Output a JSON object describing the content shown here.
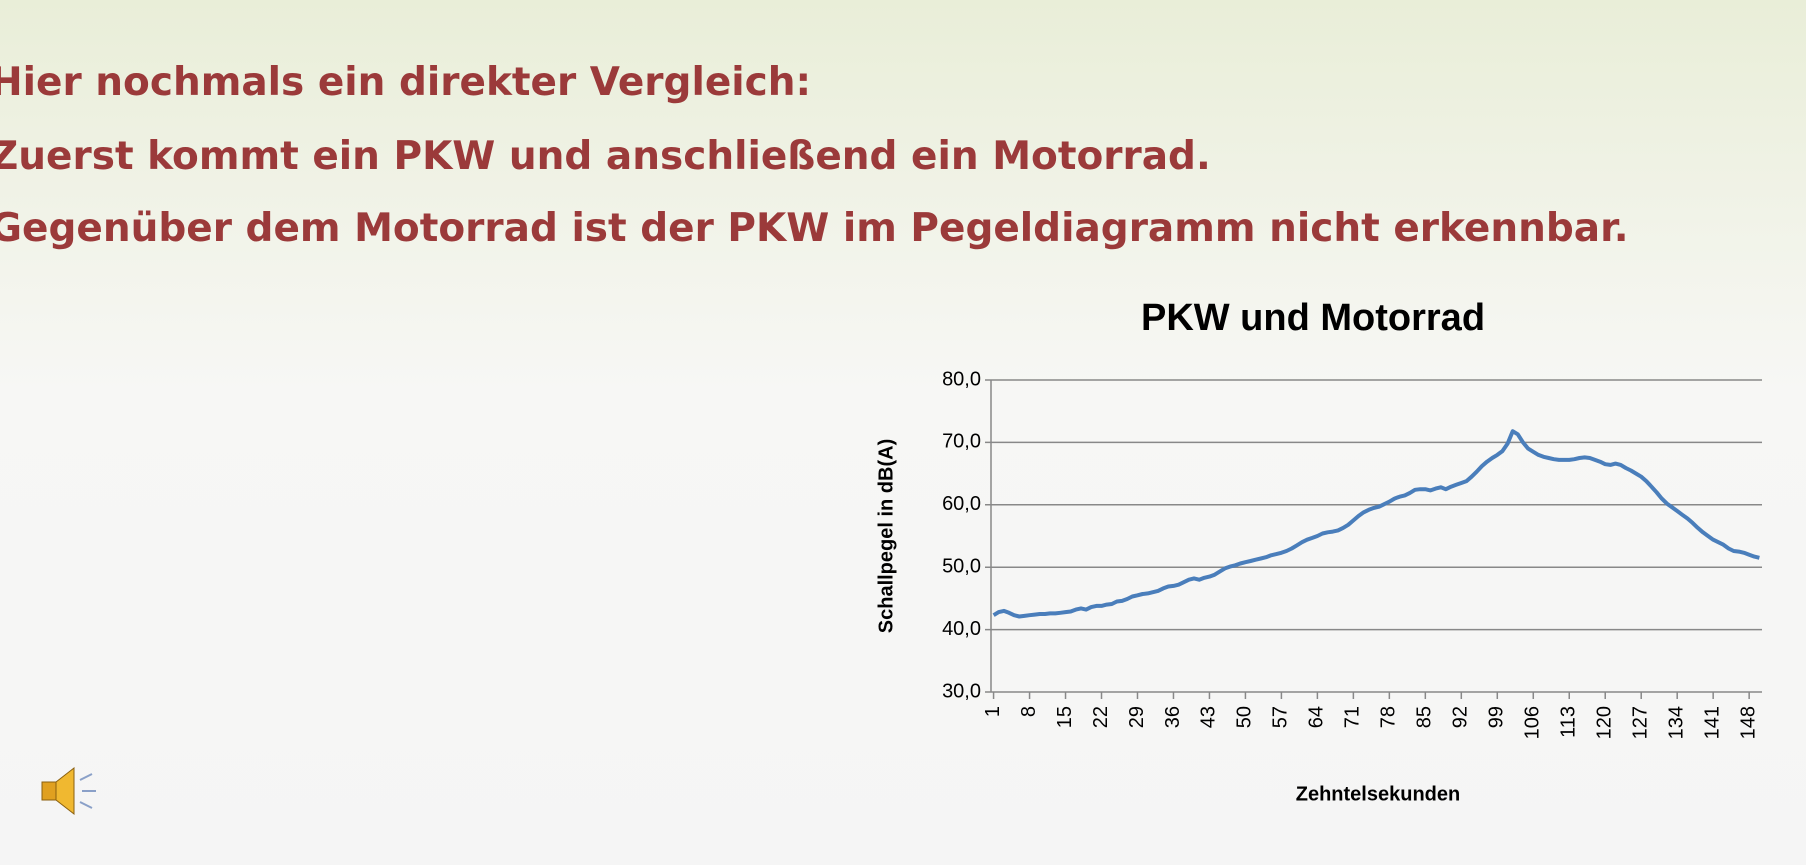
{
  "slide": {
    "lines": [
      "Hier nochmals ein direkter Vergleich:",
      "Zuerst kommt ein PKW und anschließend ein Motorrad.",
      "Gegenüber dem Motorrad ist der PKW im Pegeldiagramm nicht erkennbar."
    ]
  },
  "chart_data": {
    "type": "line",
    "title": "PKW und Motorrad",
    "x_label": "Zehntelsekunden",
    "y_label": "Schallpegel in dB(A)",
    "color": "#4a7ebb",
    "grid": true,
    "xlim": [
      0.5,
      150.5
    ],
    "xticks": [
      1,
      8,
      15,
      22,
      29,
      36,
      43,
      50,
      57,
      64,
      71,
      78,
      85,
      92,
      99,
      106,
      113,
      120,
      127,
      134,
      141,
      148
    ],
    "ylim": [
      30,
      80
    ],
    "yticks": [
      {
        "value": 30,
        "label": "30,0"
      },
      {
        "value": 40,
        "label": "40,0"
      },
      {
        "value": 50,
        "label": "50,0"
      },
      {
        "value": 60,
        "label": "60,0"
      },
      {
        "value": 70,
        "label": "70,0"
      },
      {
        "value": 80,
        "label": "80,0"
      }
    ],
    "x": [
      1,
      2,
      3,
      4,
      5,
      6,
      7,
      8,
      9,
      10,
      11,
      12,
      13,
      14,
      15,
      16,
      17,
      18,
      19,
      20,
      21,
      22,
      23,
      24,
      25,
      26,
      27,
      28,
      29,
      30,
      31,
      32,
      33,
      34,
      35,
      36,
      37,
      38,
      39,
      40,
      41,
      42,
      43,
      44,
      45,
      46,
      47,
      48,
      49,
      50,
      51,
      52,
      53,
      54,
      55,
      56,
      57,
      58,
      59,
      60,
      61,
      62,
      63,
      64,
      65,
      66,
      67,
      68,
      69,
      70,
      71,
      72,
      73,
      74,
      75,
      76,
      77,
      78,
      79,
      80,
      81,
      82,
      83,
      84,
      85,
      86,
      87,
      88,
      89,
      90,
      91,
      92,
      93,
      94,
      95,
      96,
      97,
      98,
      99,
      100,
      101,
      102,
      103,
      104,
      105,
      106,
      107,
      108,
      109,
      110,
      111,
      112,
      113,
      114,
      115,
      116,
      117,
      118,
      119,
      120,
      121,
      122,
      123,
      124,
      125,
      126,
      127,
      128,
      129,
      130,
      131,
      132,
      133,
      134,
      135,
      136,
      137,
      138,
      139,
      140,
      141,
      142,
      143,
      144,
      145,
      146,
      147,
      148,
      149,
      150
    ],
    "values": [
      42.3,
      42.8,
      43.0,
      42.7,
      42.3,
      42.1,
      42.2,
      42.3,
      42.4,
      42.5,
      42.5,
      42.6,
      42.6,
      42.7,
      42.8,
      42.9,
      43.2,
      43.4,
      43.2,
      43.6,
      43.8,
      43.8,
      44.0,
      44.1,
      44.5,
      44.6,
      44.9,
      45.3,
      45.5,
      45.7,
      45.8,
      46.0,
      46.2,
      46.6,
      46.9,
      47.0,
      47.2,
      47.6,
      48.0,
      48.2,
      48.0,
      48.3,
      48.5,
      48.8,
      49.3,
      49.8,
      50.1,
      50.3,
      50.6,
      50.8,
      51.0,
      51.2,
      51.4,
      51.6,
      51.9,
      52.1,
      52.3,
      52.6,
      53.0,
      53.5,
      54.0,
      54.4,
      54.7,
      55.0,
      55.4,
      55.6,
      55.7,
      55.9,
      56.3,
      56.8,
      57.5,
      58.2,
      58.8,
      59.2,
      59.5,
      59.7,
      60.1,
      60.5,
      61.0,
      61.3,
      61.5,
      61.9,
      62.4,
      62.5,
      62.5,
      62.3,
      62.6,
      62.8,
      62.5,
      62.9,
      63.2,
      63.5,
      63.8,
      64.5,
      65.3,
      66.2,
      66.9,
      67.5,
      68.0,
      68.6,
      69.8,
      71.8,
      71.3,
      70.0,
      69.0,
      68.5,
      68.0,
      67.7,
      67.5,
      67.3,
      67.2,
      67.2,
      67.2,
      67.3,
      67.5,
      67.6,
      67.5,
      67.2,
      66.9,
      66.5,
      66.4,
      66.6,
      66.4,
      65.9,
      65.5,
      65.0,
      64.5,
      63.8,
      62.9,
      62.0,
      61.0,
      60.2,
      59.6,
      59.0,
      58.4,
      57.8,
      57.1,
      56.3,
      55.6,
      55.0,
      54.4,
      54.0,
      53.6,
      53.0,
      52.6,
      52.5,
      52.3,
      52.0,
      51.7,
      51.5
    ]
  }
}
